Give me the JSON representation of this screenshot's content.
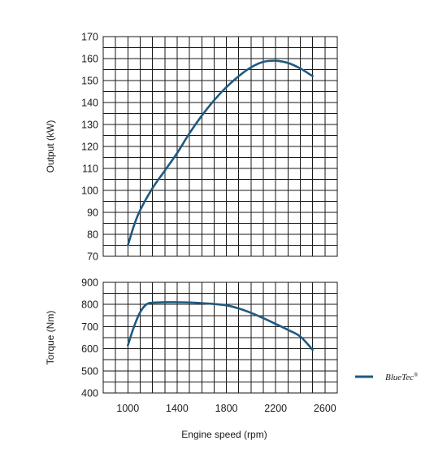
{
  "colors": {
    "series": "#1f5a80",
    "grid": "#1a1a1a",
    "background": "#ffffff"
  },
  "chart_data": [
    {
      "type": "line",
      "title": "",
      "xlabel": "",
      "ylabel": "Output (kW)",
      "xlim": [
        800,
        2700
      ],
      "ylim": [
        70,
        170
      ],
      "x_grid_step": 100,
      "y_grid_step": 5,
      "grid": true,
      "yticks": [
        70,
        80,
        90,
        100,
        110,
        120,
        130,
        140,
        150,
        160,
        170
      ],
      "series": [
        {
          "name": "",
          "x": [
            1000,
            1050,
            1100,
            1200,
            1300,
            1400,
            1500,
            1600,
            1700,
            1800,
            1900,
            2000,
            2100,
            2200,
            2300,
            2400,
            2500
          ],
          "y": [
            75,
            84,
            91,
            101,
            109,
            117,
            126,
            134,
            141,
            147,
            152,
            156,
            158.5,
            159,
            158,
            155.5,
            152
          ]
        }
      ]
    },
    {
      "type": "line",
      "title": "",
      "xlabel": "Engine speed (rpm)",
      "ylabel": "Torque (Nm)",
      "xlim": [
        800,
        2700
      ],
      "ylim": [
        400,
        900
      ],
      "x_grid_step": 100,
      "y_grid_step": 50,
      "grid": true,
      "xticks": [
        1000,
        1400,
        1800,
        2200,
        2600
      ],
      "yticks": [
        400,
        500,
        600,
        700,
        800,
        900
      ],
      "series": [
        {
          "name": "BlueTec®",
          "x": [
            1000,
            1050,
            1100,
            1150,
            1200,
            1300,
            1400,
            1500,
            1600,
            1700,
            1800,
            1900,
            2000,
            2100,
            2200,
            2300,
            2400,
            2500
          ],
          "y": [
            615,
            700,
            765,
            800,
            808,
            810,
            810,
            809,
            806,
            802,
            796,
            782,
            762,
            738,
            712,
            685,
            655,
            595
          ]
        }
      ]
    }
  ],
  "legend": {
    "label": "BlueTec",
    "mark": "®",
    "position": "bottom-right"
  }
}
